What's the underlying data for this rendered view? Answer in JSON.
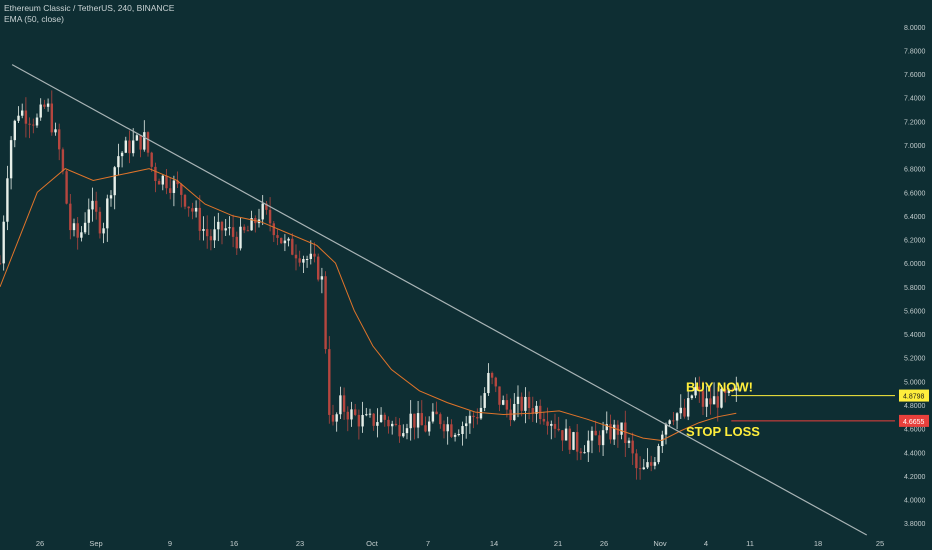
{
  "header": {
    "title": "Ethereum Classic / TetherUS, 240, BINANCE",
    "indicator": "EMA (50, close)"
  },
  "colors": {
    "background": "#0e2e33",
    "up": "#e7efe9",
    "down": "#b5463f",
    "ema": "#e0742a",
    "trendline": "#a9b4b6",
    "buy": "#ffee3c",
    "stop": "#e8403c"
  },
  "chart_data": {
    "type": "candlestick",
    "ylim": [
      3.7,
      8.1
    ],
    "y_ticks": [
      "8.0000",
      "7.8000",
      "7.6000",
      "7.4000",
      "7.2000",
      "7.0000",
      "6.8000",
      "6.6000",
      "6.4000",
      "6.2000",
      "6.0000",
      "5.8000",
      "5.6000",
      "5.4000",
      "5.2000",
      "5.0000",
      "4.8000",
      "4.6000",
      "4.4000",
      "4.2000",
      "4.0000",
      "3.8000"
    ],
    "x_ticks": [
      "26",
      "Sep",
      "9",
      "16",
      "23",
      "Oct",
      "7",
      "14",
      "21",
      "26",
      "Nov",
      "4",
      "11",
      "18",
      "25"
    ],
    "price_points": [
      [
        0,
        6.0
      ],
      [
        0.01,
        7.0
      ],
      [
        0.02,
        7.3
      ],
      [
        0.04,
        7.2
      ],
      [
        0.05,
        7.35
      ],
      [
        0.065,
        6.9
      ],
      [
        0.075,
        6.3
      ],
      [
        0.085,
        6.2
      ],
      [
        0.095,
        6.5
      ],
      [
        0.11,
        6.3
      ],
      [
        0.125,
        6.9
      ],
      [
        0.14,
        7.0
      ],
      [
        0.155,
        7.05
      ],
      [
        0.165,
        6.75
      ],
      [
        0.18,
        6.7
      ],
      [
        0.195,
        6.6
      ],
      [
        0.21,
        6.4
      ],
      [
        0.225,
        6.2
      ],
      [
        0.24,
        6.3
      ],
      [
        0.255,
        6.2
      ],
      [
        0.27,
        6.3
      ],
      [
        0.28,
        6.45
      ],
      [
        0.295,
        6.3
      ],
      [
        0.305,
        6.15
      ],
      [
        0.32,
        6.1
      ],
      [
        0.335,
        6.0
      ],
      [
        0.345,
        5.9
      ],
      [
        0.355,
        4.55
      ],
      [
        0.365,
        4.8
      ],
      [
        0.38,
        4.7
      ],
      [
        0.395,
        4.65
      ],
      [
        0.41,
        4.7
      ],
      [
        0.425,
        4.6
      ],
      [
        0.44,
        4.7
      ],
      [
        0.455,
        4.6
      ],
      [
        0.47,
        4.7
      ],
      [
        0.485,
        4.6
      ],
      [
        0.5,
        4.65
      ],
      [
        0.515,
        4.75
      ],
      [
        0.525,
        5.05
      ],
      [
        0.535,
        4.85
      ],
      [
        0.545,
        4.75
      ],
      [
        0.56,
        4.8
      ],
      [
        0.575,
        4.78
      ],
      [
        0.59,
        4.7
      ],
      [
        0.605,
        4.55
      ],
      [
        0.62,
        4.45
      ],
      [
        0.635,
        4.5
      ],
      [
        0.65,
        4.55
      ],
      [
        0.665,
        4.6
      ],
      [
        0.675,
        4.45
      ],
      [
        0.685,
        4.2
      ],
      [
        0.7,
        4.3
      ],
      [
        0.71,
        4.6
      ],
      [
        0.72,
        4.75
      ],
      [
        0.735,
        4.7
      ],
      [
        0.745,
        4.95
      ],
      [
        0.755,
        4.8
      ],
      [
        0.77,
        4.85
      ],
      [
        0.78,
        4.85
      ],
      [
        0.79,
        4.88
      ]
    ],
    "ema_points": [
      [
        0,
        5.8
      ],
      [
        0.02,
        6.2
      ],
      [
        0.04,
        6.6
      ],
      [
        0.07,
        6.8
      ],
      [
        0.1,
        6.7
      ],
      [
        0.13,
        6.75
      ],
      [
        0.16,
        6.8
      ],
      [
        0.19,
        6.7
      ],
      [
        0.22,
        6.5
      ],
      [
        0.25,
        6.4
      ],
      [
        0.28,
        6.35
      ],
      [
        0.31,
        6.25
      ],
      [
        0.34,
        6.15
      ],
      [
        0.36,
        6.0
      ],
      [
        0.38,
        5.6
      ],
      [
        0.4,
        5.3
      ],
      [
        0.42,
        5.1
      ],
      [
        0.45,
        4.92
      ],
      [
        0.48,
        4.82
      ],
      [
        0.51,
        4.74
      ],
      [
        0.54,
        4.72
      ],
      [
        0.57,
        4.73
      ],
      [
        0.6,
        4.75
      ],
      [
        0.63,
        4.68
      ],
      [
        0.66,
        4.6
      ],
      [
        0.69,
        4.52
      ],
      [
        0.71,
        4.5
      ],
      [
        0.73,
        4.58
      ],
      [
        0.75,
        4.65
      ],
      [
        0.77,
        4.7
      ],
      [
        0.79,
        4.73
      ]
    ],
    "trendline": {
      "start": [
        0.013,
        7.68
      ],
      "end": [
        0.93,
        3.7
      ]
    },
    "buy_level": {
      "label": "BUY NOW!",
      "value": "4.8798",
      "price": 4.8798
    },
    "stop_level": {
      "label": "STOP LOSS",
      "value": "4.6655",
      "price": 4.6655
    }
  }
}
